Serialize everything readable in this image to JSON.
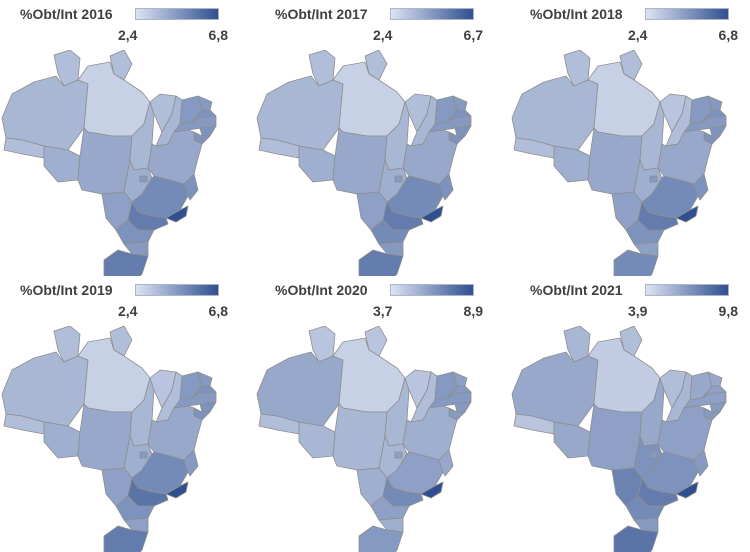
{
  "colors": {
    "low": "#dce3f2",
    "high": "#2f4f8f",
    "border": "#8e8e8e"
  },
  "panels": [
    {
      "title": "%Obt/Int 2016",
      "min_label": "2,4",
      "max_label": "6,8"
    },
    {
      "title": "%Obt/Int 2017",
      "min_label": "2,4",
      "max_label": "6,7"
    },
    {
      "title": "%Obt/Int 2018",
      "min_label": "2,4",
      "max_label": "6,8"
    },
    {
      "title": "%Obt/Int 2019",
      "min_label": "2,4",
      "max_label": "6,8"
    },
    {
      "title": "%Obt/Int 2020",
      "min_label": "3,7",
      "max_label": "8,9"
    },
    {
      "title": "%Obt/Int 2021",
      "min_label": "3,9",
      "max_label": "9,8"
    }
  ],
  "state_levels": [
    {
      "RR": 0.25,
      "AP": 0.25,
      "AM": 0.3,
      "AC": 0.25,
      "RO": 0.35,
      "PA": 0.12,
      "MT": 0.4,
      "TO": 0.3,
      "MA": 0.25,
      "PI": 0.3,
      "CE": 0.5,
      "RN": 0.5,
      "PB": 0.55,
      "PE": 0.5,
      "AL": 0.55,
      "SE": 0.55,
      "BA": 0.4,
      "GO": 0.35,
      "DF": 0.5,
      "MS": 0.45,
      "MG": 0.6,
      "ES": 0.55,
      "RJ": 1.0,
      "SP": 0.7,
      "PR": 0.55,
      "SC": 0.5,
      "RS": 0.7
    },
    {
      "RR": 0.25,
      "AP": 0.25,
      "AM": 0.3,
      "AC": 0.25,
      "RO": 0.35,
      "PA": 0.12,
      "MT": 0.4,
      "TO": 0.3,
      "MA": 0.25,
      "PI": 0.3,
      "CE": 0.5,
      "RN": 0.5,
      "PB": 0.55,
      "PE": 0.5,
      "AL": 0.55,
      "SE": 0.55,
      "BA": 0.4,
      "GO": 0.35,
      "DF": 0.5,
      "MS": 0.45,
      "MG": 0.6,
      "ES": 0.55,
      "RJ": 1.0,
      "SP": 0.7,
      "PR": 0.6,
      "SC": 0.5,
      "RS": 0.7
    },
    {
      "RR": 0.25,
      "AP": 0.25,
      "AM": 0.3,
      "AC": 0.25,
      "RO": 0.35,
      "PA": 0.12,
      "MT": 0.4,
      "TO": 0.3,
      "MA": 0.2,
      "PI": 0.25,
      "CE": 0.5,
      "RN": 0.5,
      "PB": 0.55,
      "PE": 0.5,
      "AL": 0.55,
      "SE": 0.55,
      "BA": 0.4,
      "GO": 0.35,
      "DF": 0.5,
      "MS": 0.45,
      "MG": 0.6,
      "ES": 0.55,
      "RJ": 1.0,
      "SP": 0.7,
      "PR": 0.55,
      "SC": 0.45,
      "RS": 0.6
    },
    {
      "RR": 0.25,
      "AP": 0.25,
      "AM": 0.3,
      "AC": 0.25,
      "RO": 0.35,
      "PA": 0.12,
      "MT": 0.4,
      "TO": 0.3,
      "MA": 0.2,
      "PI": 0.25,
      "CE": 0.5,
      "RN": 0.5,
      "PB": 0.55,
      "PE": 0.5,
      "AL": 0.55,
      "SE": 0.55,
      "BA": 0.4,
      "GO": 0.35,
      "DF": 0.5,
      "MS": 0.45,
      "MG": 0.6,
      "ES": 0.5,
      "RJ": 1.0,
      "SP": 0.75,
      "PR": 0.55,
      "SC": 0.45,
      "RS": 0.7
    },
    {
      "RR": 0.2,
      "AP": 0.2,
      "AM": 0.4,
      "AC": 0.25,
      "RO": 0.3,
      "PA": 0.12,
      "MT": 0.3,
      "TO": 0.3,
      "MA": 0.2,
      "PI": 0.25,
      "CE": 0.5,
      "RN": 0.45,
      "PB": 0.5,
      "PE": 0.5,
      "AL": 0.5,
      "SE": 0.5,
      "BA": 0.35,
      "GO": 0.3,
      "DF": 0.45,
      "MS": 0.35,
      "MG": 0.45,
      "ES": 0.4,
      "RJ": 1.0,
      "SP": 0.6,
      "PR": 0.45,
      "SC": 0.35,
      "RS": 0.5
    },
    {
      "RR": 0.3,
      "AP": 0.25,
      "AM": 0.4,
      "AC": 0.2,
      "RO": 0.4,
      "PA": 0.15,
      "MT": 0.45,
      "TO": 0.4,
      "MA": 0.25,
      "PI": 0.3,
      "CE": 0.4,
      "RN": 0.4,
      "PB": 0.45,
      "PE": 0.45,
      "AL": 0.5,
      "SE": 0.5,
      "BA": 0.45,
      "GO": 0.55,
      "DF": 0.5,
      "MS": 0.65,
      "MG": 0.55,
      "ES": 0.5,
      "RJ": 1.0,
      "SP": 0.7,
      "PR": 0.6,
      "SC": 0.5,
      "RS": 0.75
    }
  ]
}
